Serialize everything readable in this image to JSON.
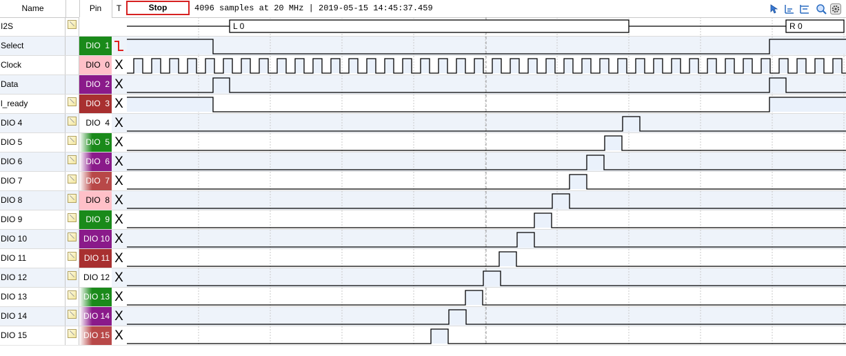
{
  "header": {
    "name_label": "Name",
    "pin_label": "Pin",
    "trigger_label": "T",
    "stop_label": "Stop",
    "status": "4096 samples at 20 MHz | 2019-05-15 14:45:37.459"
  },
  "toolbar": {
    "icons": [
      "cursor-arrow-icon",
      "align-left-icon",
      "align-right-icon",
      "zoom-icon",
      "settings-icon"
    ]
  },
  "colors": {
    "trigger_edge": "#e02020",
    "row_alt": "#eef3fa",
    "trace_fill": "#eaf1fb",
    "stop_border": "#d62020"
  },
  "bus": {
    "name": "I2S",
    "segments": [
      "L 0",
      "R 0"
    ]
  },
  "channels": [
    {
      "name": "Select",
      "pin": "DIO  1",
      "pin_bg": "#1a8a1a",
      "pin_fg": "#ffffff",
      "trigger": "falling-edge",
      "note": false
    },
    {
      "name": "Clock",
      "pin": "DIO  0",
      "pin_bg": "#ffc0c8",
      "pin_fg": "#000000",
      "trigger": "X",
      "note": false
    },
    {
      "name": "Data",
      "pin": "DIO  2",
      "pin_bg": "#8a1a8a",
      "pin_fg": "#ffffff",
      "trigger": "X",
      "note": false
    },
    {
      "name": "l_ready",
      "pin": "DIO  3",
      "pin_bg": "#a83030",
      "pin_fg": "#ffffff",
      "trigger": "X",
      "note": true
    },
    {
      "name": "DIO 4",
      "pin": "DIO  4",
      "pin_bg": "#ffffff",
      "pin_fg": "#000000",
      "trigger": "X",
      "note": true
    },
    {
      "name": "DIO 5",
      "pin": "DIO  5",
      "pin_bg": "linear-gradient(to right,#ffffff,#1a8a1a 40%)",
      "pin_fg": "#ffffff",
      "trigger": "X",
      "note": true
    },
    {
      "name": "DIO 6",
      "pin": "DIO  6",
      "pin_bg": "linear-gradient(to right,#ffffff,#8a1a8a 40%)",
      "pin_fg": "#ffffff",
      "trigger": "X",
      "note": true
    },
    {
      "name": "DIO 7",
      "pin": "DIO  7",
      "pin_bg": "linear-gradient(to right,#ffffff,#b84848 40%)",
      "pin_fg": "#ffffff",
      "trigger": "X",
      "note": true
    },
    {
      "name": "DIO 8",
      "pin": "DIO  8",
      "pin_bg": "#ffc0c8",
      "pin_fg": "#000000",
      "trigger": "X",
      "note": true
    },
    {
      "name": "DIO 9",
      "pin": "DIO  9",
      "pin_bg": "#1a8a1a",
      "pin_fg": "#ffffff",
      "trigger": "X",
      "note": true
    },
    {
      "name": "DIO 10",
      "pin": "DIO 10",
      "pin_bg": "#8a1a8a",
      "pin_fg": "#ffffff",
      "trigger": "X",
      "note": true
    },
    {
      "name": "DIO 11",
      "pin": "DIO 11",
      "pin_bg": "#a83030",
      "pin_fg": "#ffffff",
      "trigger": "X",
      "note": true
    },
    {
      "name": "DIO 12",
      "pin": "DIO 12",
      "pin_bg": "#ffffff",
      "pin_fg": "#000000",
      "trigger": "X",
      "note": true
    },
    {
      "name": "DIO 13",
      "pin": "DIO 13",
      "pin_bg": "linear-gradient(to right,#ffffff,#1a8a1a 40%)",
      "pin_fg": "#ffffff",
      "trigger": "X",
      "note": true
    },
    {
      "name": "DIO 14",
      "pin": "DIO 14",
      "pin_bg": "linear-gradient(to right,#ffffff,#8a1a8a 40%)",
      "pin_fg": "#ffffff",
      "trigger": "X",
      "note": true
    },
    {
      "name": "DIO 15",
      "pin": "DIO 15",
      "pin_bg": "linear-gradient(to right,#ffffff,#b84848 40%)",
      "pin_fg": "#ffffff",
      "trigger": "X",
      "note": true
    }
  ]
}
